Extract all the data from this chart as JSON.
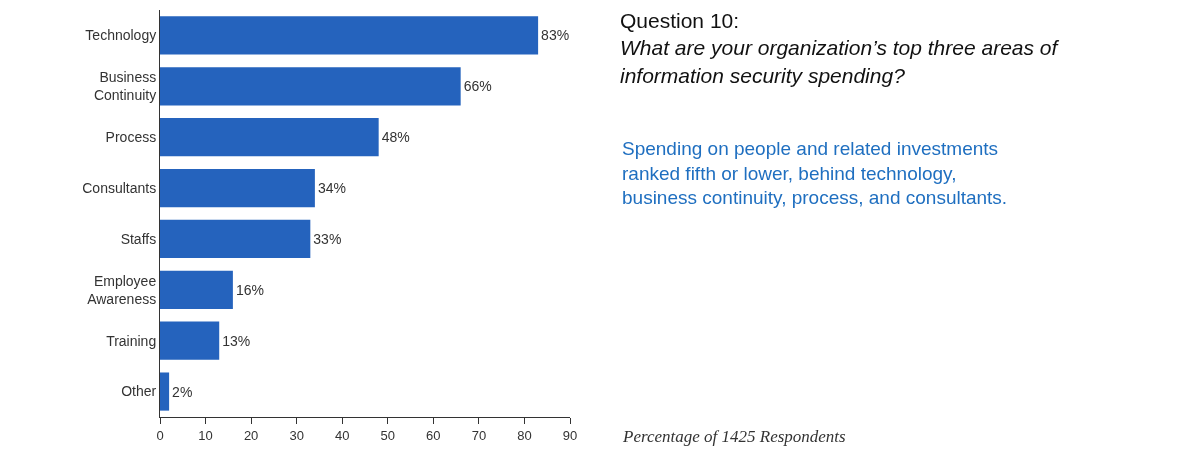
{
  "chart_data": {
    "type": "bar",
    "orientation": "horizontal",
    "title": "Question 10:",
    "subtitle": "What are your organization’s top three areas of information security spending?",
    "categories": [
      "Technology",
      "Business Continuity",
      "Process",
      "Consultants",
      "Staffs",
      "Employee Awareness",
      "Training",
      "Other"
    ],
    "values": [
      83,
      66,
      48,
      34,
      33,
      16,
      13,
      2
    ],
    "value_labels": [
      "83%",
      "66%",
      "48%",
      "34%",
      "33%",
      "16%",
      "13%",
      "2%"
    ],
    "color": "#2563bd",
    "xlim": [
      0,
      90
    ],
    "xticks": [
      0,
      10,
      20,
      30,
      40,
      50,
      60,
      70,
      80,
      90
    ],
    "legend": false,
    "annotations": [
      "Spending on people and related investments ranked fifth or lower, behind technology, business continuity, process, and consultants.",
      "Percentage of 1425 Respondents"
    ]
  }
}
